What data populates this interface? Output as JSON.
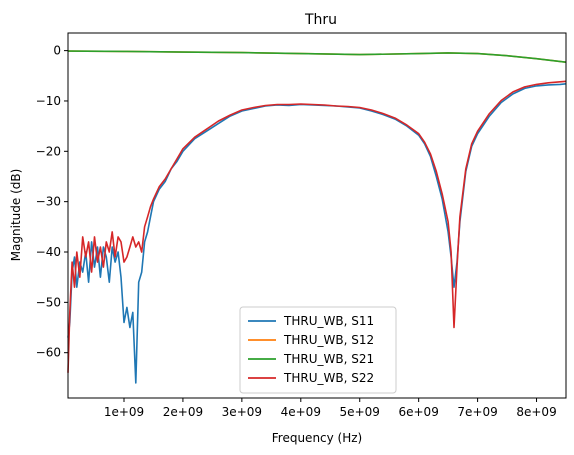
{
  "chart_data": {
    "type": "line",
    "title": "Thru",
    "xlabel": "Frequency (Hz)",
    "ylabel": "Magnitude (dB)",
    "xlim": [
      50000000,
      8500000000
    ],
    "ylim": [
      -69,
      3.5
    ],
    "x_ticks": [
      1000000000,
      2000000000,
      3000000000,
      4000000000,
      5000000000,
      6000000000,
      7000000000,
      8000000000
    ],
    "x_tick_labels": [
      "1e+09",
      "2e+09",
      "3e+09",
      "4e+09",
      "5e+09",
      "6e+09",
      "7e+09",
      "8e+09"
    ],
    "y_ticks": [
      0,
      -10,
      -20,
      -30,
      -40,
      -50,
      -60
    ],
    "y_tick_labels": [
      "0",
      "−10",
      "−20",
      "−30",
      "−40",
      "−50",
      "−60"
    ],
    "grid": false,
    "legend_position": "bottom-center",
    "series": [
      {
        "name": "THRU_WB, S11",
        "color": "#1f77b4",
        "x": [
          50000000,
          80000000,
          120000000,
          160000000,
          200000000,
          250000000,
          300000000,
          350000000,
          400000000,
          450000000,
          500000000,
          550000000,
          600000000,
          650000000,
          700000000,
          750000000,
          800000000,
          850000000,
          900000000,
          950000000,
          1000000000,
          1050000000,
          1100000000,
          1150000000,
          1200000000,
          1250000000,
          1300000000,
          1350000000,
          1400000000,
          1450000000,
          1500000000,
          1600000000,
          1700000000,
          1800000000,
          1900000000,
          2000000000,
          2200000000,
          2400000000,
          2600000000,
          2800000000,
          3000000000,
          3200000000,
          3400000000,
          3600000000,
          3800000000,
          4000000000,
          4200000000,
          4400000000,
          4600000000,
          4800000000,
          5000000000,
          5200000000,
          5400000000,
          5600000000,
          5800000000,
          6000000000,
          6100000000,
          6200000000,
          6300000000,
          6400000000,
          6500000000,
          6550000000,
          6600000000,
          6650000000,
          6700000000,
          6800000000,
          6900000000,
          7000000000,
          7200000000,
          7400000000,
          7600000000,
          7800000000,
          8000000000,
          8200000000,
          8400000000,
          8500000000
        ],
        "y": [
          -57,
          -54,
          -44,
          -41,
          -47,
          -42,
          -44,
          -40,
          -46,
          -38,
          -43,
          -39,
          -45,
          -39,
          -41,
          -46,
          -39,
          -42,
          -40,
          -45,
          -54,
          -51,
          -55,
          -52,
          -66,
          -46,
          -44,
          -38,
          -36,
          -33,
          -30,
          -27.5,
          -26,
          -23.5,
          -22,
          -20,
          -17.5,
          -16,
          -14.5,
          -13,
          -12,
          -11.5,
          -11,
          -10.8,
          -10.9,
          -10.7,
          -10.8,
          -10.9,
          -11,
          -11.2,
          -11.4,
          -12,
          -12.7,
          -13.6,
          -15,
          -16.8,
          -18.5,
          -21,
          -25,
          -29.5,
          -36,
          -41,
          -47,
          -42,
          -34,
          -24,
          -19,
          -16.5,
          -13,
          -10.3,
          -8.6,
          -7.5,
          -7,
          -6.8,
          -6.7,
          -6.6
        ]
      },
      {
        "name": "THRU_WB, S12",
        "color": "#ff7f0e",
        "x": [
          50000000,
          1000000000,
          2000000000,
          3000000000,
          4000000000,
          5000000000,
          6000000000,
          6500000000,
          7000000000,
          7500000000,
          8000000000,
          8500000000
        ],
        "y": [
          -0.1,
          -0.15,
          -0.3,
          -0.4,
          -0.6,
          -0.8,
          -0.6,
          -0.45,
          -0.6,
          -1.0,
          -1.6,
          -2.3
        ]
      },
      {
        "name": "THRU_WB, S21",
        "color": "#2ca02c",
        "x": [
          50000000,
          1000000000,
          2000000000,
          3000000000,
          4000000000,
          5000000000,
          6000000000,
          6500000000,
          7000000000,
          7500000000,
          8000000000,
          8500000000
        ],
        "y": [
          -0.1,
          -0.15,
          -0.3,
          -0.4,
          -0.6,
          -0.8,
          -0.6,
          -0.45,
          -0.6,
          -1.0,
          -1.6,
          -2.3
        ]
      },
      {
        "name": "THRU_WB, S22",
        "color": "#d62728",
        "x": [
          50000000,
          80000000,
          120000000,
          160000000,
          200000000,
          250000000,
          300000000,
          350000000,
          400000000,
          450000000,
          500000000,
          550000000,
          600000000,
          650000000,
          700000000,
          750000000,
          800000000,
          850000000,
          900000000,
          950000000,
          1000000000,
          1050000000,
          1100000000,
          1150000000,
          1200000000,
          1250000000,
          1300000000,
          1350000000,
          1400000000,
          1450000000,
          1500000000,
          1600000000,
          1700000000,
          1800000000,
          1900000000,
          2000000000,
          2200000000,
          2400000000,
          2600000000,
          2800000000,
          3000000000,
          3200000000,
          3400000000,
          3600000000,
          3800000000,
          4000000000,
          4200000000,
          4400000000,
          4600000000,
          4800000000,
          5000000000,
          5200000000,
          5400000000,
          5600000000,
          5800000000,
          6000000000,
          6100000000,
          6200000000,
          6300000000,
          6400000000,
          6500000000,
          6550000000,
          6600000000,
          6650000000,
          6700000000,
          6800000000,
          6900000000,
          7000000000,
          7200000000,
          7400000000,
          7600000000,
          7800000000,
          8000000000,
          8200000000,
          8400000000,
          8500000000
        ],
        "y": [
          -64,
          -52,
          -42,
          -47,
          -40,
          -45,
          -37,
          -41,
          -38,
          -44,
          -37,
          -42,
          -39,
          -43,
          -38,
          -40,
          -36,
          -41,
          -37,
          -38,
          -42,
          -41,
          -39,
          -37,
          -39,
          -38,
          -40,
          -35,
          -33,
          -31,
          -29.5,
          -27,
          -25.5,
          -23.5,
          -21.5,
          -19.5,
          -17.2,
          -15.6,
          -14,
          -12.8,
          -11.8,
          -11.3,
          -10.9,
          -10.7,
          -10.7,
          -10.6,
          -10.7,
          -10.8,
          -11,
          -11.1,
          -11.3,
          -11.8,
          -12.5,
          -13.4,
          -14.8,
          -16.5,
          -18.2,
          -20.5,
          -24,
          -28.5,
          -34,
          -40,
          -55,
          -43,
          -33,
          -23.5,
          -18.5,
          -16,
          -12.5,
          -9.9,
          -8.2,
          -7.2,
          -6.7,
          -6.4,
          -6.2,
          -6.1
        ]
      }
    ]
  }
}
